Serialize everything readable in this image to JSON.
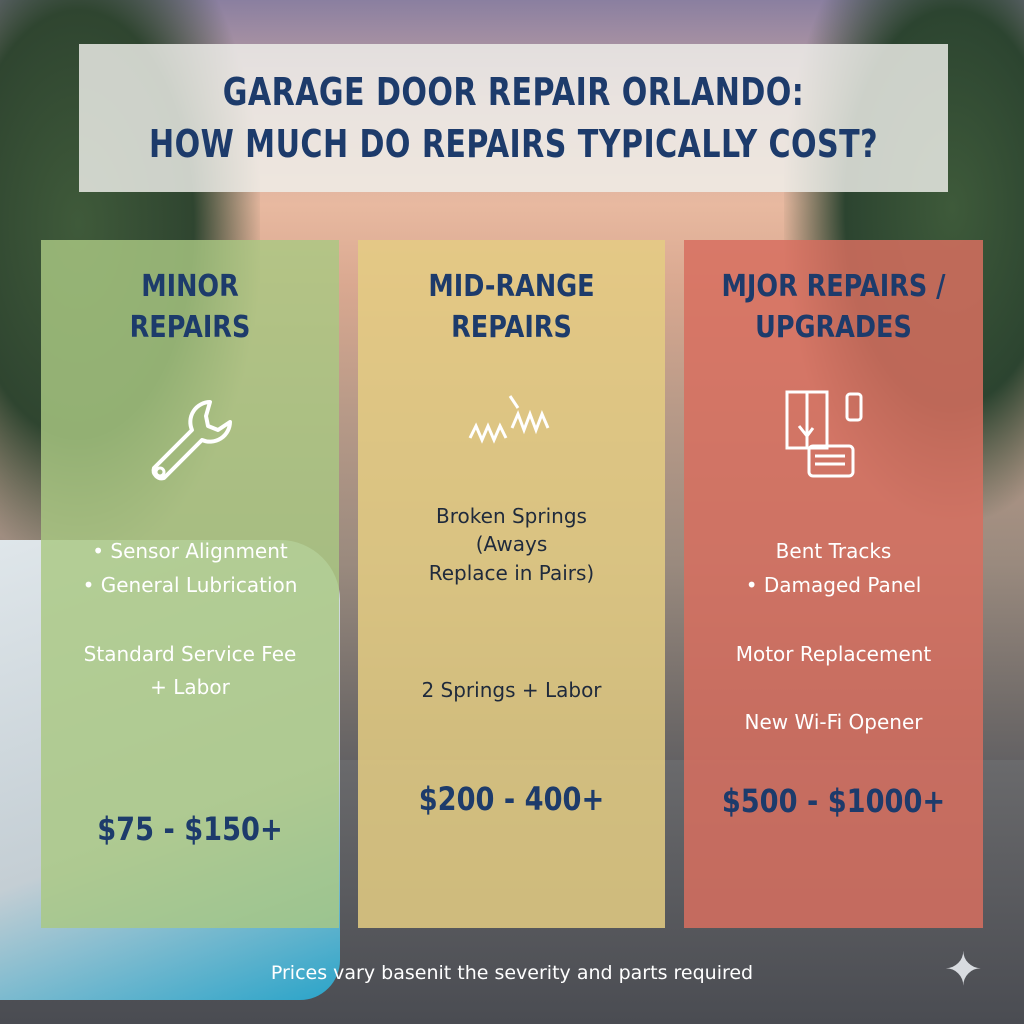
{
  "title": {
    "line1": "GARAGE DOOR REPAIR ORLANDO:",
    "line2": "HOW MUCH DO REPAIRS TYPICALLY COST?"
  },
  "columns": [
    {
      "heading1": "MINOR",
      "heading2": "REPAIRS",
      "icon": "wrench-icon",
      "items": [
        "• Sensor Alignment",
        "• General Lubrication",
        "Standard Service Fee",
        "+ Labor"
      ],
      "price": "$75 - $150+",
      "color": "#a9c682"
    },
    {
      "heading1": "MID-RANGE",
      "heading2": "REPAIRS",
      "icon": "spring-icon",
      "items": [
        "Broken Springs",
        "(Aways",
        "Replace in Pairs)",
        "2 Springs + Labor"
      ],
      "price": "$200 - 400+",
      "color": "#e4cd82"
    },
    {
      "heading1": "MJOR REPAIRS /",
      "heading2": "UPGRADES",
      "icon": "broken-panel-motor-icon",
      "items": [
        "Bent Tracks",
        "• Damaged Panel",
        "Motor Replacement",
        "New Wi-Fi Opener"
      ],
      "price": "$500 - $1000+",
      "color": "#d76e5f"
    }
  ],
  "footer": "Prices vary basenit the severity and parts required",
  "accent": "#1d3b6b"
}
